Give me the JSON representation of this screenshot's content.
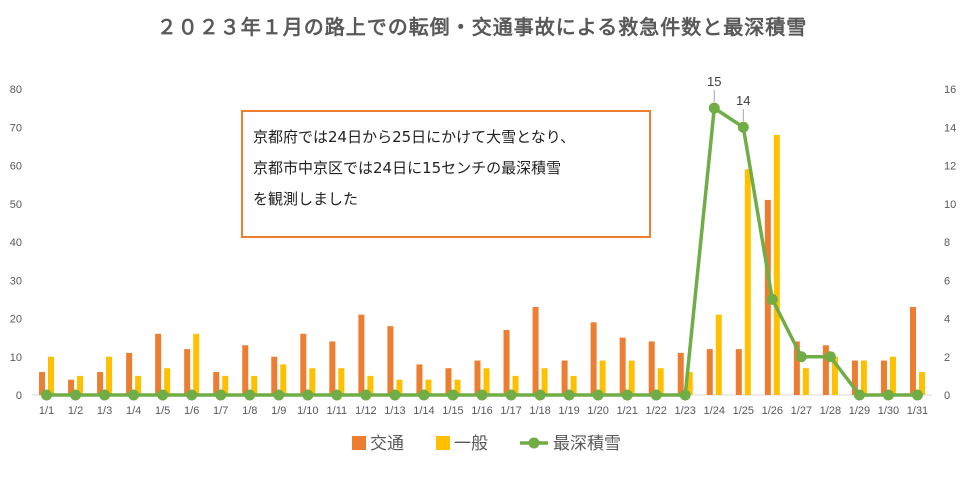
{
  "chart_data": {
    "type": "bar",
    "title": "２０２３年１月の路上での転倒・交通事故による救急件数と最深積雪",
    "categories": [
      "1/1",
      "1/2",
      "1/3",
      "1/4",
      "1/5",
      "1/6",
      "1/7",
      "1/8",
      "1/9",
      "1/10",
      "1/11",
      "1/12",
      "1/13",
      "1/14",
      "1/15",
      "1/16",
      "1/17",
      "1/18",
      "1/19",
      "1/20",
      "1/21",
      "1/22",
      "1/23",
      "1/24",
      "1/25",
      "1/26",
      "1/27",
      "1/28",
      "1/29",
      "1/30",
      "1/31"
    ],
    "series": [
      {
        "name": "交通",
        "type": "bar",
        "axis": "left",
        "color": "#ed7d31",
        "values": [
          6,
          4,
          6,
          11,
          16,
          12,
          6,
          13,
          10,
          16,
          14,
          21,
          18,
          8,
          7,
          9,
          17,
          23,
          9,
          19,
          15,
          14,
          11,
          12,
          12,
          51,
          14,
          13,
          9,
          9,
          23
        ]
      },
      {
        "name": "一般",
        "type": "bar",
        "axis": "left",
        "color": "#ffc000",
        "values": [
          10,
          5,
          10,
          5,
          7,
          16,
          5,
          5,
          8,
          7,
          7,
          5,
          4,
          4,
          4,
          7,
          5,
          7,
          5,
          9,
          9,
          7,
          6,
          21,
          59,
          68,
          7,
          10,
          9,
          10,
          6
        ]
      },
      {
        "name": "最深積雪",
        "type": "line",
        "axis": "right",
        "color": "#70ad47",
        "values": [
          0,
          0,
          0,
          0,
          0,
          0,
          0,
          0,
          0,
          0,
          0,
          0,
          0,
          0,
          0,
          0,
          0,
          0,
          0,
          0,
          0,
          0,
          0,
          15,
          14,
          5,
          2,
          2,
          0,
          0,
          0
        ]
      }
    ],
    "y_left": {
      "min": 0,
      "max": 80,
      "ticks": [
        0,
        10,
        20,
        30,
        40,
        50,
        60,
        70,
        80
      ]
    },
    "y_right": {
      "min": 0,
      "max": 16,
      "ticks": [
        0,
        2,
        4,
        6,
        8,
        10,
        12,
        14,
        16
      ]
    },
    "data_labels": [
      {
        "series": "最深積雪",
        "category": "1/24",
        "text": "15"
      },
      {
        "series": "最深積雪",
        "category": "1/25",
        "text": "14"
      }
    ],
    "annotation": [
      "京都府では24日から25日にかけて大雪となり、",
      "京都市中京区では24日に15センチの最深積雪",
      "を観測しました"
    ],
    "legend_position": "bottom",
    "grid": false
  }
}
